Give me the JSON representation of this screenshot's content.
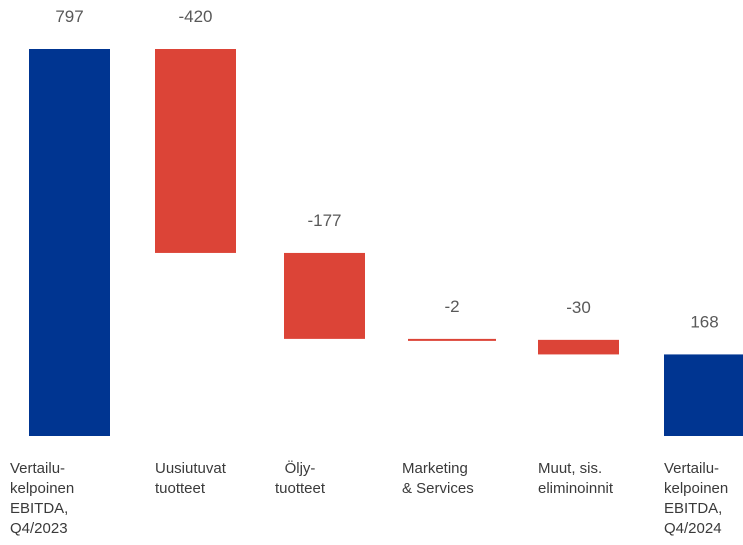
{
  "chart_data": {
    "type": "bar",
    "subtype": "waterfall",
    "categories": [
      [
        "Vertailu-",
        "kelpoinen",
        "EBITDA,",
        "Q4/2023"
      ],
      [
        "Uusiutuvat",
        "tuotteet"
      ],
      [
        "Öljy-",
        "tuotteet"
      ],
      [
        "Marketing",
        "& Services"
      ],
      [
        "Muut, sis.",
        "eliminoinnit"
      ],
      [
        "Vertailu-",
        "kelpoinen",
        "EBITDA,",
        "Q4/2024"
      ]
    ],
    "values": [
      797,
      -420,
      -177,
      -2,
      -30,
      168
    ],
    "value_labels": [
      "797",
      "-420",
      "-177",
      "-2",
      "-30",
      "168"
    ],
    "bar_kinds": [
      "total",
      "delta",
      "delta",
      "delta",
      "delta",
      "total"
    ],
    "colors": {
      "total": "#003591",
      "negative": "#dc4437"
    },
    "ylim": [
      0,
      797
    ],
    "grid": false,
    "legend": "none",
    "title": "",
    "xlabel": "",
    "ylabel": ""
  }
}
